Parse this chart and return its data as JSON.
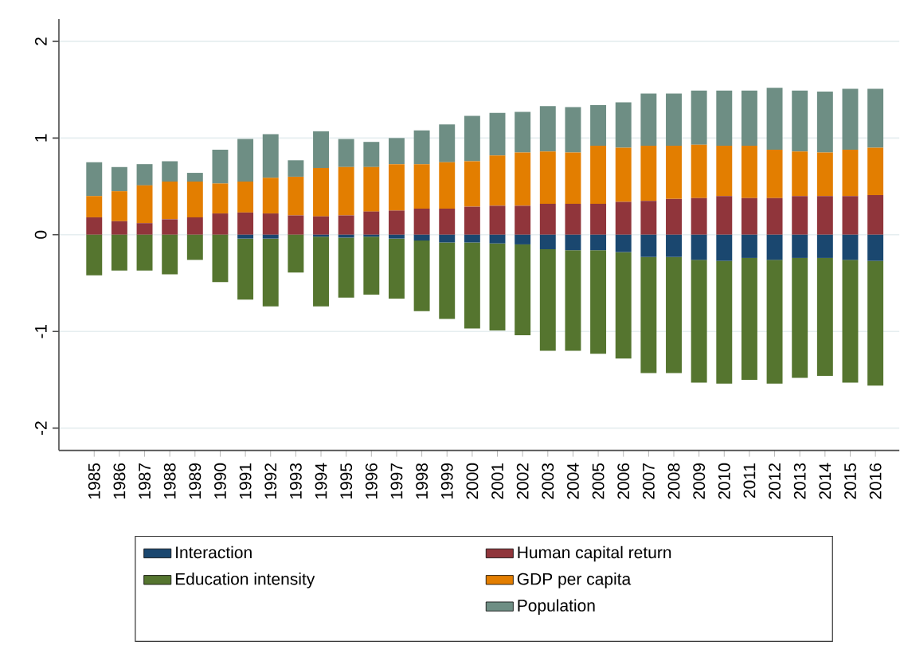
{
  "chart_data": {
    "type": "bar",
    "stacked": true,
    "categories": [
      "1985",
      "1986",
      "1987",
      "1988",
      "1989",
      "1990",
      "1991",
      "1992",
      "1993",
      "1994",
      "1995",
      "1996",
      "1997",
      "1998",
      "1999",
      "2000",
      "2001",
      "2002",
      "2003",
      "2004",
      "2005",
      "2006",
      "2007",
      "2008",
      "2009",
      "2010",
      "2011",
      "2012",
      "2013",
      "2014",
      "2015",
      "2016"
    ],
    "series": [
      {
        "name": "Interaction",
        "color": "#1a476f",
        "values": [
          0,
          0,
          0,
          0,
          0,
          0,
          -0.04,
          -0.04,
          0,
          -0.02,
          -0.03,
          -0.02,
          -0.04,
          -0.06,
          -0.08,
          -0.08,
          -0.09,
          -0.1,
          -0.15,
          -0.16,
          -0.16,
          -0.18,
          -0.23,
          -0.23,
          -0.26,
          -0.27,
          -0.24,
          -0.26,
          -0.24,
          -0.24,
          -0.26,
          -0.27
        ]
      },
      {
        "name": "Education intensity",
        "color": "#55752f",
        "values": [
          -0.42,
          -0.37,
          -0.37,
          -0.41,
          -0.26,
          -0.49,
          -0.63,
          -0.7,
          -0.39,
          -0.72,
          -0.62,
          -0.6,
          -0.62,
          -0.73,
          -0.79,
          -0.89,
          -0.9,
          -0.94,
          -1.05,
          -1.04,
          -1.07,
          -1.1,
          -1.2,
          -1.2,
          -1.27,
          -1.27,
          -1.26,
          -1.28,
          -1.24,
          -1.22,
          -1.27,
          -1.29
        ]
      },
      {
        "name": "Human capital return",
        "color": "#90353b",
        "values": [
          0.18,
          0.14,
          0.12,
          0.16,
          0.18,
          0.22,
          0.23,
          0.22,
          0.2,
          0.19,
          0.2,
          0.24,
          0.25,
          0.27,
          0.27,
          0.29,
          0.3,
          0.3,
          0.32,
          0.32,
          0.32,
          0.34,
          0.35,
          0.37,
          0.38,
          0.4,
          0.38,
          0.38,
          0.4,
          0.4,
          0.4,
          0.41
        ]
      },
      {
        "name": "GDP per capita",
        "color": "#e37e00",
        "values": [
          0.22,
          0.31,
          0.39,
          0.39,
          0.37,
          0.31,
          0.32,
          0.37,
          0.4,
          0.5,
          0.5,
          0.46,
          0.48,
          0.46,
          0.48,
          0.47,
          0.52,
          0.55,
          0.54,
          0.53,
          0.6,
          0.56,
          0.57,
          0.55,
          0.55,
          0.52,
          0.54,
          0.5,
          0.46,
          0.45,
          0.48,
          0.49
        ]
      },
      {
        "name": "Population",
        "color": "#6e8e84",
        "values": [
          0.35,
          0.25,
          0.22,
          0.21,
          0.09,
          0.35,
          0.44,
          0.45,
          0.17,
          0.38,
          0.29,
          0.26,
          0.27,
          0.35,
          0.39,
          0.47,
          0.44,
          0.42,
          0.47,
          0.47,
          0.42,
          0.47,
          0.54,
          0.54,
          0.56,
          0.57,
          0.57,
          0.64,
          0.63,
          0.63,
          0.63,
          0.61
        ]
      }
    ],
    "ylim": [
      -2.23,
      2.23
    ],
    "yticks": [
      -2,
      -1,
      0,
      1,
      2
    ],
    "grid": "y",
    "legend": "bottom"
  }
}
